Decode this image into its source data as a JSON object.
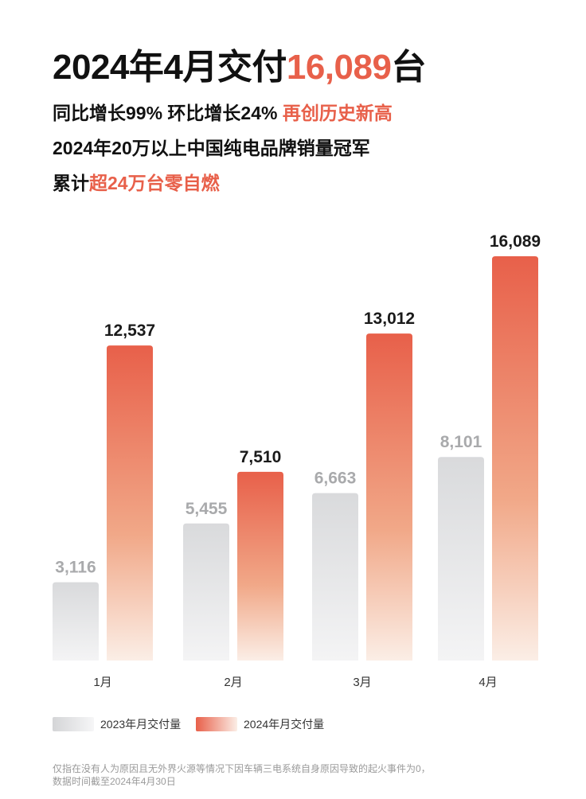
{
  "headline": {
    "prefix": "2024年4月交付",
    "highlight": "16,089",
    "suffix": "台"
  },
  "subline1": {
    "main": "同比增长99% 环比增长24% ",
    "highlight": "再创历史新高"
  },
  "subline2": {
    "main": "2024年20万以上中国纯电品牌销量冠军"
  },
  "subline3": {
    "prefix": "累计",
    "highlight": "超24万台零自燃"
  },
  "colors": {
    "accent": "#e8604a",
    "bar2023_top": "#d9dadc",
    "bar2023_bottom": "#f4f4f5",
    "bar2024_top": "#e8604a",
    "bar2024_bottom": "#fbeee6",
    "label2023": "#a9aaac",
    "label2024": "#1a1a1a"
  },
  "chart_data": {
    "type": "bar",
    "categories": [
      "1月",
      "2月",
      "3月",
      "4月"
    ],
    "series": [
      {
        "name": "2023年月交付量",
        "values": [
          3116,
          5455,
          6663,
          8101
        ],
        "labels": [
          "3,116",
          "5,455",
          "6,663",
          "8,101"
        ]
      },
      {
        "name": "2024年月交付量",
        "values": [
          12537,
          7510,
          13012,
          16089
        ],
        "labels": [
          "12,537",
          "7,510",
          "13,012",
          "16,089"
        ]
      }
    ],
    "legend": "bottom-left",
    "grid": false
  },
  "legend": {
    "item2023": "2023年月交付量",
    "item2024": "2024年月交付量"
  },
  "footnote": {
    "line1": "仅指在没有人为原因且无外界火源等情况下因车辆三电系统自身原因导致的起火事件为0，",
    "line2": "数据时间截至2024年4月30日"
  }
}
